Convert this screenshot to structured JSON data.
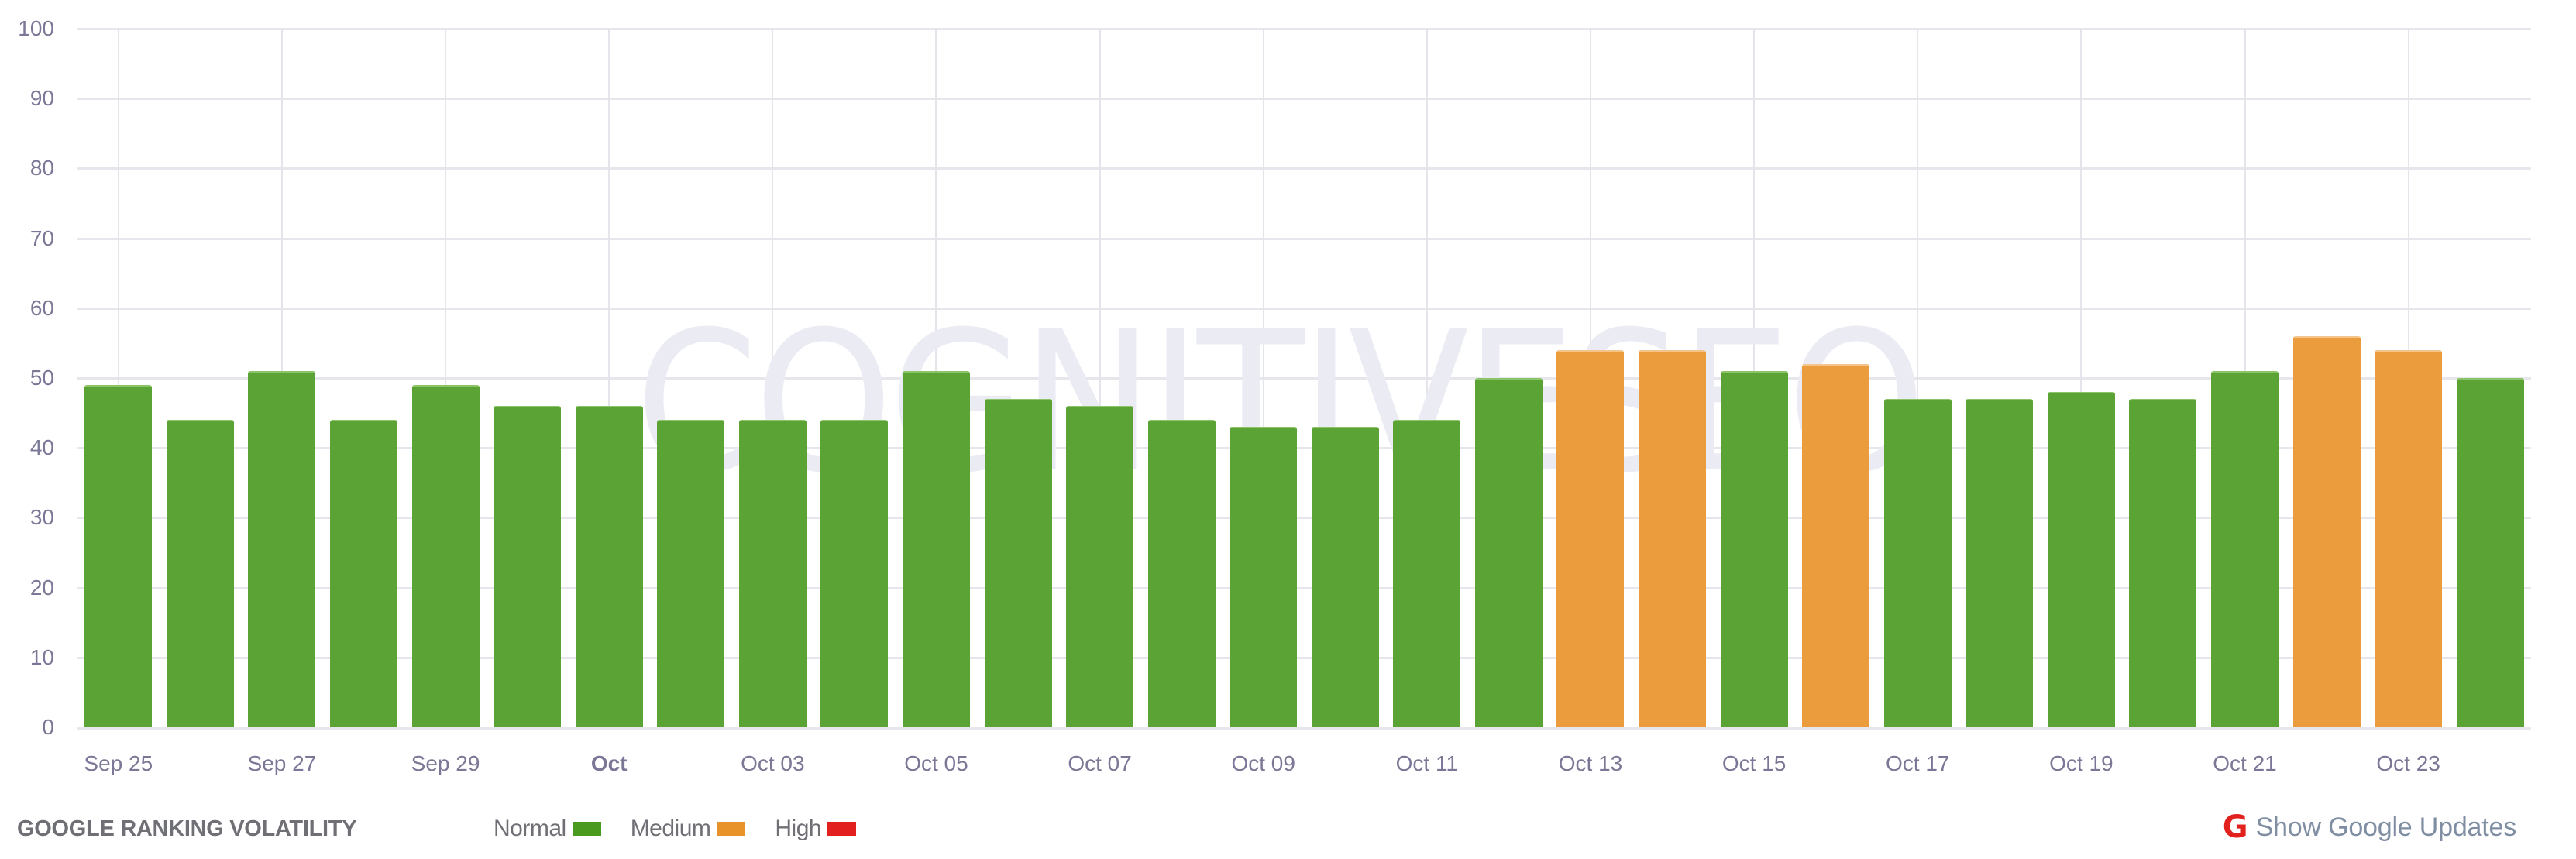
{
  "chart_data": {
    "type": "bar",
    "title": "GOOGLE RANKING VOLATILITY",
    "xlabel": "",
    "ylabel": "",
    "ylim": [
      0,
      100
    ],
    "yticks": [
      0,
      10,
      20,
      30,
      40,
      50,
      60,
      70,
      80,
      90,
      100
    ],
    "grid": true,
    "legend_position": "bottom",
    "categories": [
      "Sep 25",
      "Sep 26",
      "Sep 27",
      "Sep 28",
      "Sep 29",
      "Sep 30",
      "Oct 01",
      "Oct 02",
      "Oct 03",
      "Oct 04",
      "Oct 05",
      "Oct 06",
      "Oct 07",
      "Oct 08",
      "Oct 09",
      "Oct 10",
      "Oct 11",
      "Oct 12",
      "Oct 13",
      "Oct 14",
      "Oct 15",
      "Oct 16",
      "Oct 17",
      "Oct 18",
      "Oct 19",
      "Oct 20",
      "Oct 21",
      "Oct 22",
      "Oct 23",
      "Oct 24"
    ],
    "values": [
      49,
      44,
      51,
      44,
      49,
      46,
      46,
      44,
      44,
      44,
      51,
      47,
      46,
      44,
      43,
      43,
      44,
      50,
      54,
      54,
      51,
      52,
      47,
      47,
      48,
      47,
      51,
      56,
      54,
      50
    ],
    "levels": [
      "normal",
      "normal",
      "normal",
      "normal",
      "normal",
      "normal",
      "normal",
      "normal",
      "normal",
      "normal",
      "normal",
      "normal",
      "normal",
      "normal",
      "normal",
      "normal",
      "normal",
      "normal",
      "medium",
      "medium",
      "normal",
      "medium",
      "normal",
      "normal",
      "normal",
      "normal",
      "normal",
      "medium",
      "medium",
      "normal"
    ],
    "xtick_labels": [
      {
        "index": 0,
        "label": "Sep 25",
        "bold": false
      },
      {
        "index": 2,
        "label": "Sep 27",
        "bold": false
      },
      {
        "index": 4,
        "label": "Sep 29",
        "bold": false
      },
      {
        "index": 6,
        "label": "Oct",
        "bold": true
      },
      {
        "index": 8,
        "label": "Oct 03",
        "bold": false
      },
      {
        "index": 10,
        "label": "Oct 05",
        "bold": false
      },
      {
        "index": 12,
        "label": "Oct 07",
        "bold": false
      },
      {
        "index": 14,
        "label": "Oct 09",
        "bold": false
      },
      {
        "index": 16,
        "label": "Oct 11",
        "bold": false
      },
      {
        "index": 18,
        "label": "Oct 13",
        "bold": false
      },
      {
        "index": 20,
        "label": "Oct 15",
        "bold": false
      },
      {
        "index": 22,
        "label": "Oct 17",
        "bold": false
      },
      {
        "index": 24,
        "label": "Oct 19",
        "bold": false
      },
      {
        "index": 26,
        "label": "Oct 21",
        "bold": false
      },
      {
        "index": 28,
        "label": "Oct 23",
        "bold": false
      }
    ],
    "legend": [
      {
        "key": "normal",
        "label": "Normal",
        "color": "#4a9a1f"
      },
      {
        "key": "medium",
        "label": "Medium",
        "color": "#e8922a"
      },
      {
        "key": "high",
        "label": "High",
        "color": "#e2211f"
      }
    ]
  },
  "watermark": "COGNITIVESEO",
  "footer": {
    "title": "GOOGLE RANKING VOLATILITY",
    "legend": {
      "normal_label": "Normal",
      "medium_label": "Medium",
      "high_label": "High"
    },
    "updates_icon": "G",
    "updates_label": "Show Google Updates"
  },
  "colors": {
    "normal": "#4a9a1f",
    "medium": "#e8922a",
    "high": "#e2211f",
    "bar_normal": "#5ba334",
    "bar_medium": "#eb9c3d",
    "google_icon": "#e2211f"
  }
}
